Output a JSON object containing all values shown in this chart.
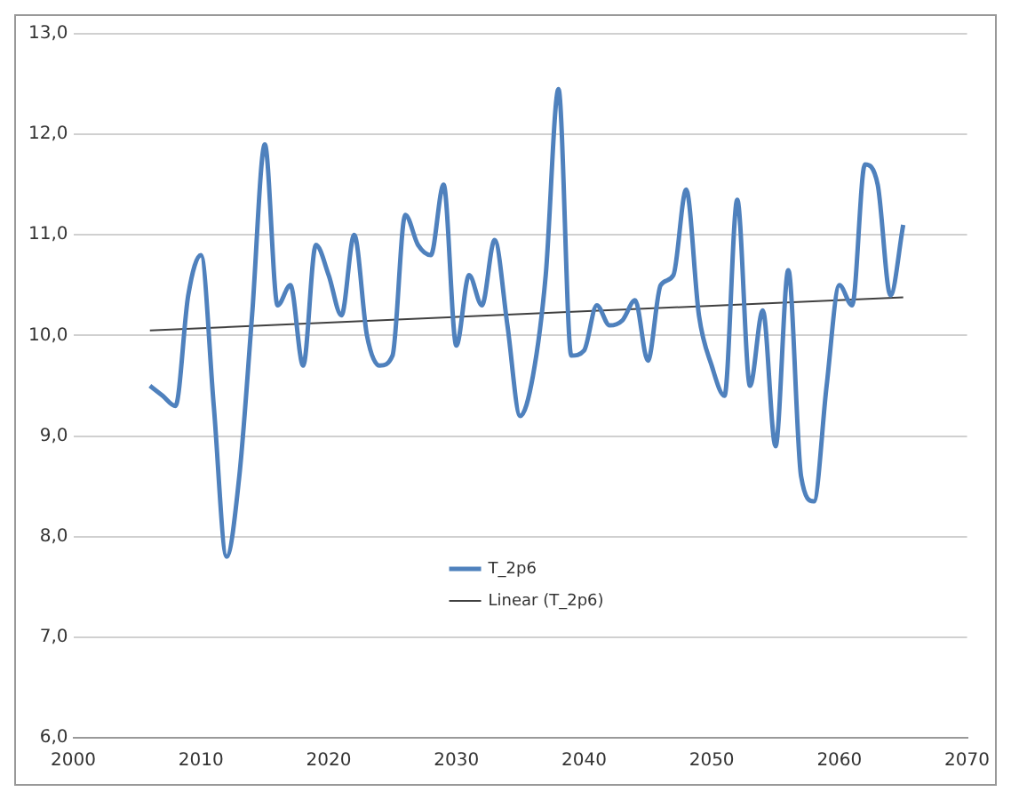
{
  "chart_data": {
    "type": "line",
    "xlim": [
      2000,
      2070
    ],
    "xticks": [
      2000,
      2010,
      2020,
      2030,
      2040,
      2050,
      2060,
      2070
    ],
    "ylim": [
      6,
      13
    ],
    "yticks": [
      {
        "value": 6,
        "label": "6,0"
      },
      {
        "value": 7,
        "label": "7,0"
      },
      {
        "value": 8,
        "label": "8,0"
      },
      {
        "value": 9,
        "label": "9,0"
      },
      {
        "value": 10,
        "label": "10,0"
      },
      {
        "value": 11,
        "label": "11,0"
      },
      {
        "value": 12,
        "label": "12,0"
      },
      {
        "value": 13,
        "label": "13,0"
      }
    ],
    "grid": "y",
    "legend": "bottom",
    "marker": "none",
    "line_style": "solid",
    "x": [
      2006,
      2007,
      2008,
      2009,
      2010,
      2011,
      2012,
      2013,
      2014,
      2015,
      2016,
      2017,
      2018,
      2019,
      2020,
      2021,
      2022,
      2023,
      2024,
      2025,
      2026,
      2027,
      2028,
      2029,
      2030,
      2031,
      2032,
      2033,
      2034,
      2035,
      2036,
      2037,
      2038,
      2039,
      2040,
      2041,
      2042,
      2043,
      2044,
      2045,
      2046,
      2047,
      2048,
      2049,
      2050,
      2051,
      2052,
      2053,
      2054,
      2055,
      2056,
      2057,
      2058,
      2059,
      2060,
      2061,
      2062,
      2063,
      2064,
      2065
    ],
    "series": [
      {
        "name": "T_2p6",
        "color": "#4f81bd",
        "values": [
          9.5,
          9.4,
          9.3,
          10.4,
          10.8,
          9.3,
          7.8,
          8.6,
          10.2,
          11.9,
          10.3,
          10.5,
          9.7,
          10.9,
          10.6,
          10.2,
          11.0,
          10.0,
          9.7,
          9.8,
          11.2,
          10.9,
          10.8,
          11.5,
          9.9,
          10.6,
          10.3,
          10.95,
          10.1,
          9.2,
          9.6,
          10.6,
          12.45,
          9.8,
          9.85,
          10.3,
          10.1,
          10.15,
          10.35,
          9.75,
          10.5,
          10.6,
          11.45,
          10.2,
          9.7,
          9.4,
          11.35,
          9.5,
          10.25,
          8.9,
          10.65,
          8.6,
          8.35,
          9.5,
          10.5,
          10.3,
          11.7,
          11.5,
          10.4,
          11.1
        ]
      },
      {
        "name": "Linear (T_2p6)",
        "type": "line",
        "color": "#404040",
        "x": [
          2006,
          2065
        ],
        "values": [
          10.05,
          10.38
        ]
      }
    ]
  }
}
